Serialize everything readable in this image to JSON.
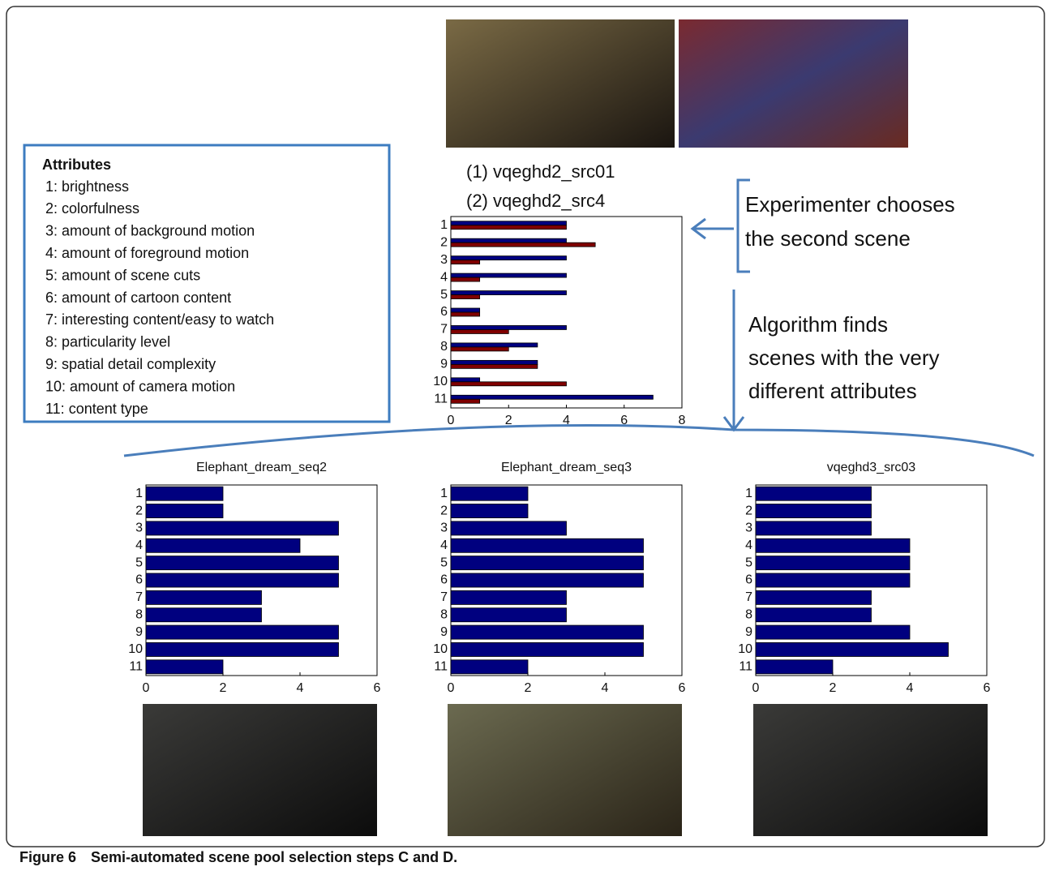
{
  "attributes": {
    "title": "Attributes",
    "items": [
      "1: brightness",
      "2: colorfulness",
      "3: amount of background motion",
      "4: amount of foreground motion",
      "5: amount of scene cuts",
      "6: amount of cartoon content",
      "7: interesting content/easy to watch",
      "8: particularity level",
      "9: spatial detail complexity",
      "10: amount of camera motion",
      "11: content type"
    ]
  },
  "annotations": {
    "chooses": [
      "Experimenter chooses",
      "the second scene"
    ],
    "algorithm": [
      "Algorithm finds",
      "scenes with the very",
      "different attributes"
    ]
  },
  "caption": {
    "label": "Figure 6",
    "text": "Semi-automated scene pool selection steps C and D."
  },
  "chart_data": [
    {
      "type": "barh",
      "categories": [
        "1",
        "2",
        "3",
        "4",
        "5",
        "6",
        "7",
        "8",
        "9",
        "10",
        "11"
      ],
      "series": [
        {
          "name": "(1) vqeghd2_src01",
          "color": "#00007f",
          "values": [
            4,
            4,
            4,
            4,
            4,
            1,
            4,
            3,
            3,
            1,
            7
          ]
        },
        {
          "name": "(2) vqeghd2_src4",
          "color": "#7f0000",
          "values": [
            4,
            5,
            1,
            1,
            1,
            1,
            2,
            2,
            3,
            4,
            1
          ]
        }
      ],
      "xlim": [
        0,
        8
      ],
      "xticks": [
        0,
        2,
        4,
        6,
        8
      ]
    },
    {
      "type": "barh",
      "title": "Elephant_dream_seq2",
      "categories": [
        "1",
        "2",
        "3",
        "4",
        "5",
        "6",
        "7",
        "8",
        "9",
        "10",
        "11"
      ],
      "values": [
        2,
        2,
        5,
        4,
        5,
        5,
        3,
        3,
        5,
        5,
        2
      ],
      "color": "#00007f",
      "xlim": [
        0,
        6
      ],
      "xticks": [
        0,
        2,
        4,
        6
      ]
    },
    {
      "type": "barh",
      "title": "Elephant_dream_seq3",
      "categories": [
        "1",
        "2",
        "3",
        "4",
        "5",
        "6",
        "7",
        "8",
        "9",
        "10",
        "11"
      ],
      "values": [
        2,
        2,
        3,
        5,
        5,
        5,
        3,
        3,
        5,
        5,
        2
      ],
      "color": "#00007f",
      "xlim": [
        0,
        6
      ],
      "xticks": [
        0,
        2,
        4,
        6
      ]
    },
    {
      "type": "barh",
      "title": "vqeghd3_src03",
      "categories": [
        "1",
        "2",
        "3",
        "4",
        "5",
        "6",
        "7",
        "8",
        "9",
        "10",
        "11"
      ],
      "values": [
        3,
        3,
        3,
        4,
        4,
        4,
        3,
        3,
        4,
        5,
        2
      ],
      "color": "#00007f",
      "xlim": [
        0,
        6
      ],
      "xticks": [
        0,
        2,
        4,
        6
      ]
    }
  ]
}
